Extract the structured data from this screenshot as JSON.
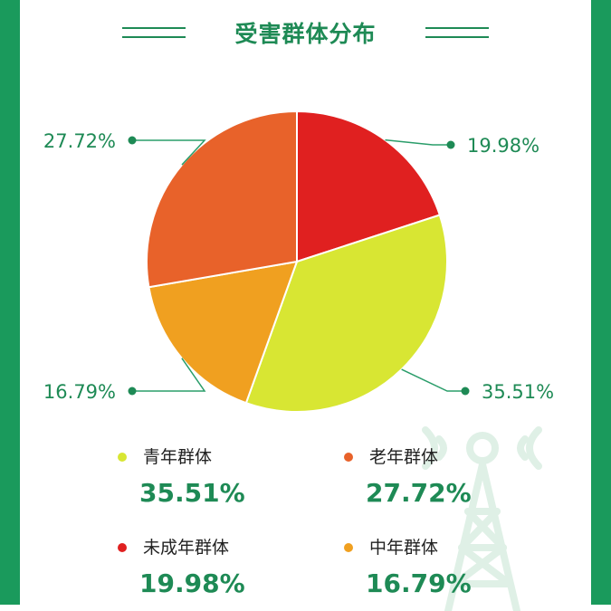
{
  "title": "受害群体分布",
  "colors": {
    "brand_green": "#1e8a55",
    "frame_green": "#1a9a5c",
    "teal": "#2a9d6a"
  },
  "chart_data": {
    "type": "pie",
    "title": "受害群体分布",
    "slices": [
      {
        "label": "未成年群体",
        "value": 19.98,
        "display": "19.98%",
        "color": "#e02020"
      },
      {
        "label": "青年群体",
        "value": 35.51,
        "display": "35.51%",
        "color": "#d8e633"
      },
      {
        "label": "中年群体",
        "value": 16.79,
        "display": "16.79%",
        "color": "#f0a020"
      },
      {
        "label": "老年群体",
        "value": 27.72,
        "display": "27.72%",
        "color": "#e8622a"
      }
    ]
  },
  "legend": [
    {
      "label": "青年群体",
      "value": "35.51%",
      "color": "#d8e633"
    },
    {
      "label": "老年群体",
      "value": "27.72%",
      "color": "#e8622a"
    },
    {
      "label": "未成年群体",
      "value": "19.98%",
      "color": "#e02020"
    },
    {
      "label": "中年群体",
      "value": "16.79%",
      "color": "#f0a020"
    }
  ]
}
